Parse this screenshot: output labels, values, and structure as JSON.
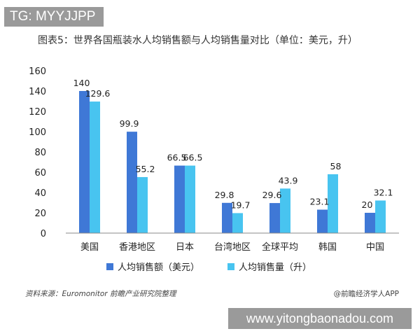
{
  "header": {
    "tg_badge": "TG: MYYJJPP"
  },
  "footer": {
    "source_note": "资料来源：Euromonitor 前瞻产业研究院整理",
    "brand_credit": "@前瞻经济学人APP",
    "site_badge": "www.yitongbaonadou.com"
  },
  "colors": {
    "series1": "#3f78d6",
    "series2": "#48c4f0",
    "axis": "#555555"
  },
  "chart_data": {
    "type": "bar",
    "title": "图表5：世界各国瓶装水人均销售额与人均销售量对比（单位：美元，升）",
    "categories": [
      "美国",
      "香港地区",
      "日本",
      "台湾地区",
      "全球平均",
      "韩国",
      "中国"
    ],
    "series": [
      {
        "name": "人均销售额（美元）",
        "values": [
          140,
          99.9,
          66.5,
          29.8,
          29.6,
          23.1,
          20
        ],
        "labels": [
          "140",
          "99.9",
          "66.5",
          "29.8",
          "29.6",
          "23.1",
          "20"
        ]
      },
      {
        "name": "人均销售量（升）",
        "values": [
          129.6,
          55.2,
          66.5,
          19.7,
          43.9,
          58,
          32.1
        ],
        "labels": [
          "129.6",
          "55.2",
          "66.5",
          "19.7",
          "43.9",
          "58",
          "32.1"
        ]
      }
    ],
    "yticks": [
      "0",
      "20",
      "40",
      "60",
      "80",
      "100",
      "120",
      "140",
      "160"
    ],
    "ylim": [
      0,
      160
    ],
    "legend_position": "bottom",
    "grid": false
  }
}
